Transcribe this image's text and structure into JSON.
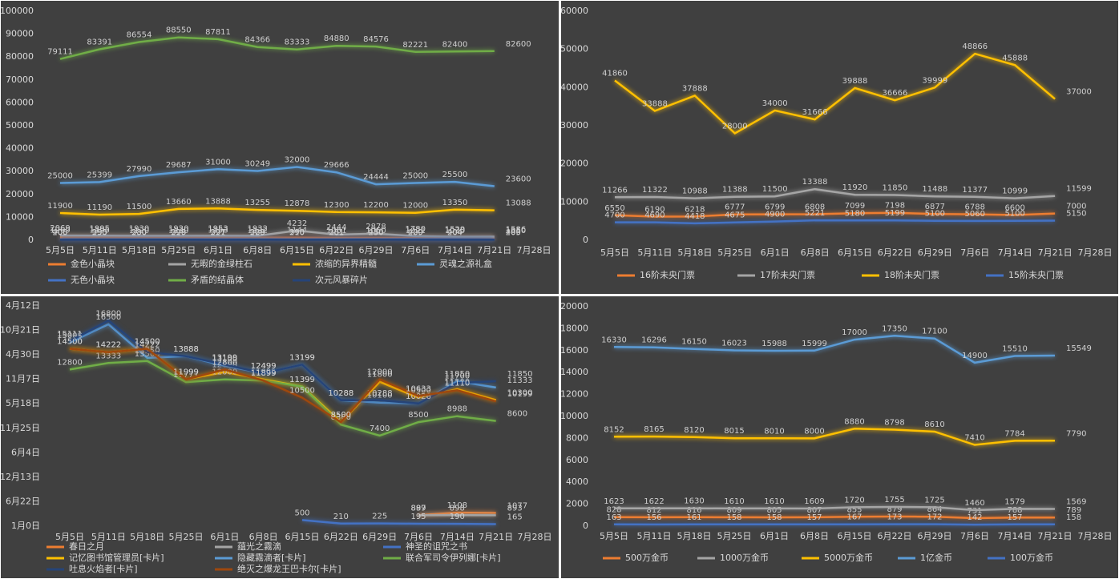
{
  "chart_data": [
    {
      "type": "line",
      "grid": false,
      "categories": [
        "5月5日",
        "5月11日",
        "5月18日",
        "5月25日",
        "6月1日",
        "6月8日",
        "6月15日",
        "6月22日",
        "6月29日",
        "7月6日",
        "7月14日",
        "7月21日",
        "7月28日"
      ],
      "ylim": [
        0,
        100000
      ],
      "yticks": [
        0,
        10000,
        20000,
        30000,
        40000,
        50000,
        60000,
        70000,
        80000,
        90000,
        100000
      ],
      "series": [
        {
          "name": "金色小晶块",
          "color": "#ed7d31",
          "values": [
            1269,
            1195,
            1120,
            1130,
            1153,
            1132,
            1144,
            1051,
            1050,
            1021,
            1030,
            1050,
            null
          ]
        },
        {
          "name": "无暇的金绿柱石",
          "color": "#a5a5a5",
          "values": [
            2069,
            1995,
            1930,
            1920,
            1953,
            1932,
            4232,
            2444,
            2878,
            1780,
            1529,
            1586,
            null
          ]
        },
        {
          "name": "浓缩的异界精髓",
          "color": "#ffc000",
          "values": [
            11900,
            11190,
            11500,
            13660,
            13888,
            13255,
            12878,
            12300,
            12200,
            12000,
            13350,
            13088,
            null
          ]
        },
        {
          "name": "灵魂之源礼盒",
          "color": "#5b9bd5",
          "values": [
            25000,
            25399,
            27990,
            29687,
            31000,
            30249,
            32000,
            29666,
            24444,
            25000,
            25500,
            23600,
            null
          ]
        },
        {
          "name": "无色小晶块",
          "color": "#4472c4",
          "values": [
            400,
            395,
            380,
            398,
            397,
            388,
            390,
            381,
            450,
            420,
            404,
            400,
            null
          ]
        },
        {
          "name": "矛盾的结晶体",
          "color": "#70ad47",
          "values": [
            79111,
            83391,
            86554,
            88550,
            87811,
            84366,
            83333,
            84880,
            84576,
            82221,
            82400,
            82600,
            null
          ]
        },
        {
          "name": "次元风暴碎片",
          "color": "#264478",
          "values": [
            205,
            250,
            230,
            229,
            221,
            229,
            210,
            201,
            230,
            209,
            204,
            205,
            null
          ]
        }
      ]
    },
    {
      "type": "line",
      "grid": false,
      "categories": [
        "5月5日",
        "5月11日",
        "5月18日",
        "5月25日",
        "6月1日",
        "6月8日",
        "6月15日",
        "6月22日",
        "6月29日",
        "7月6日",
        "7月14日",
        "7月21日",
        "7月28日"
      ],
      "ylim": [
        0,
        60000
      ],
      "yticks": [
        0,
        10000,
        20000,
        30000,
        40000,
        50000,
        60000
      ],
      "series": [
        {
          "name": "16阶未央门票",
          "color": "#ed7d31",
          "values": [
            6550,
            6190,
            6218,
            6777,
            6799,
            6808,
            7099,
            7198,
            6877,
            6788,
            6600,
            7000,
            null
          ]
        },
        {
          "name": "17阶未央门票",
          "color": "#a5a5a5",
          "values": [
            11266,
            11322,
            10988,
            11388,
            11500,
            13388,
            11920,
            11850,
            11488,
            11377,
            10999,
            11599,
            null
          ]
        },
        {
          "name": "18阶未央门票",
          "color": "#ffc000",
          "values": [
            41860,
            33888,
            37888,
            28000,
            34000,
            31666,
            39888,
            36666,
            39999,
            48866,
            45888,
            37000,
            null
          ]
        },
        {
          "name": "15阶未央门票",
          "color": "#4472c4",
          "values": [
            4700,
            4690,
            4418,
            4675,
            4900,
            5221,
            5180,
            5199,
            5100,
            5060,
            5100,
            5150,
            null
          ]
        }
      ]
    },
    {
      "type": "line",
      "grid": false,
      "categories": [
        "5月5日",
        "5月11日",
        "5月18日",
        "5月25日",
        "6月1日",
        "6月8日",
        "6月15日",
        "6月22日",
        "6月29日",
        "7月6日",
        "7月14日",
        "7月21日",
        "7月28日"
      ],
      "ylim": [
        0,
        18000
      ],
      "yticks": [
        {
          "value": 0,
          "label": "1月0日"
        },
        {
          "value": 2000,
          "label": "6月22日"
        },
        {
          "value": 4000,
          "label": "12月13日"
        },
        {
          "value": 6000,
          "label": "6月4日"
        },
        {
          "value": 8000,
          "label": "11月25日"
        },
        {
          "value": 10000,
          "label": "5月18日"
        },
        {
          "value": 12000,
          "label": "11月7日"
        },
        {
          "value": 14000,
          "label": "4月30日"
        },
        {
          "value": 16000,
          "label": "10月21日"
        },
        {
          "value": 18000,
          "label": "4月12日"
        }
      ],
      "series": [
        {
          "name": "春日之月",
          "color": "#ed7d31",
          "values": [
            null,
            null,
            null,
            null,
            null,
            null,
            null,
            null,
            null,
            899,
            1108,
            1077,
            null
          ]
        },
        {
          "name": "蕴光之霧滴",
          "color": "#a5a5a5",
          "values": [
            null,
            null,
            null,
            null,
            null,
            null,
            null,
            null,
            null,
            887,
            898,
            893,
            null
          ]
        },
        {
          "name": "神圣的诅咒之书",
          "color": "#4472c4",
          "values": [
            null,
            null,
            null,
            null,
            null,
            null,
            500,
            210,
            225,
            195,
            190,
            165,
            null
          ]
        },
        {
          "name": "记忆图书馆管理员[卡片]",
          "color": "#ffc000",
          "values": [
            14500,
            14222,
            14500,
            11999,
            12600,
            11999,
            11399,
            8500,
            11800,
            10500,
            11200,
            10300,
            null
          ]
        },
        {
          "name": "隐藏霧滴者[卡片]",
          "color": "#5b9bd5",
          "values": [
            15000,
            16500,
            13750,
            13888,
            13100,
            12499,
            13199,
            10288,
            10100,
            10026,
            11850,
            11333,
            null
          ]
        },
        {
          "name": "联合军司令伊列娜[卡片]",
          "color": "#70ad47",
          "values": [
            12800,
            13333,
            13500,
            11777,
            12000,
            11899,
            11399,
            8300,
            7400,
            8500,
            8988,
            8600,
            null
          ]
        },
        {
          "name": "吐息火焰者[卡片]",
          "color": "#264478",
          "values": [
            15111,
            16800,
            14222,
            13888,
            13199,
            12499,
            13199,
            10288,
            10288,
            10026,
            11700,
            11850,
            null
          ]
        },
        {
          "name": "绝灭之爆龙王巴卡尔[卡片]",
          "color": "#9e480e",
          "values": [
            14500,
            14222,
            14500,
            11999,
            12800,
            11899,
            10500,
            8500,
            12000,
            10633,
            11110,
            10199,
            null
          ]
        }
      ]
    },
    {
      "type": "line",
      "grid": false,
      "categories": [
        "5月5日",
        "5月11日",
        "5月18日",
        "5月25日",
        "6月1日",
        "6月8日",
        "6月15日",
        "6月22日",
        "6月29日",
        "7月6日",
        "7月14日",
        "7月21日",
        "7月28日"
      ],
      "ylim": [
        0,
        20000
      ],
      "yticks": [
        0,
        2000,
        4000,
        6000,
        8000,
        10000,
        12000,
        14000,
        16000,
        18000,
        20000
      ],
      "series": [
        {
          "name": "500万金币",
          "color": "#ed7d31",
          "values": [
            828,
            812,
            816,
            809,
            805,
            807,
            855,
            879,
            864,
            731,
            788,
            789,
            null
          ]
        },
        {
          "name": "1000万金币",
          "color": "#a5a5a5",
          "values": [
            1623,
            1622,
            1630,
            1610,
            1610,
            1609,
            1720,
            1755,
            1725,
            1460,
            1579,
            1569,
            null
          ]
        },
        {
          "name": "5000万金币",
          "color": "#ffc000",
          "values": [
            8152,
            8165,
            8120,
            8015,
            8010,
            8000,
            8880,
            8798,
            8610,
            7410,
            7784,
            7790,
            null
          ]
        },
        {
          "name": "1亿金币",
          "color": "#5b9bd5",
          "values": [
            16330,
            16296,
            16150,
            16023,
            15988,
            15999,
            17000,
            17350,
            17100,
            14900,
            15510,
            15549,
            null
          ]
        },
        {
          "name": "100万金币",
          "color": "#4472c4",
          "values": [
            163,
            156,
            161,
            158,
            158,
            157,
            167,
            173,
            172,
            142,
            157,
            158,
            null
          ]
        }
      ]
    }
  ]
}
